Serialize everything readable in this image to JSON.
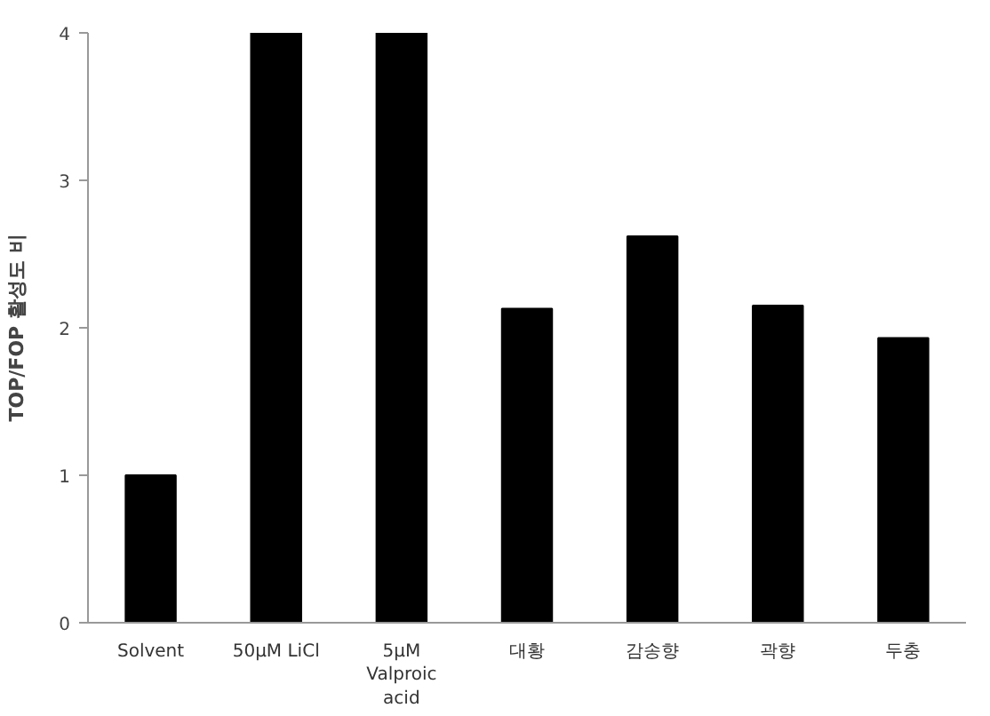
{
  "chart_data": {
    "type": "bar",
    "ylabel": "TOP/FOP 활성도 비",
    "categories": [
      "Solvent",
      "50µM LiCl",
      "5µM Valproic acid",
      "대황",
      "감송향",
      "곽향",
      "두충"
    ],
    "values": [
      1.0,
      4.0,
      4.0,
      2.13,
      2.62,
      2.15,
      1.93
    ],
    "color": "#000000",
    "ylim": [
      0,
      4
    ],
    "yticks": [
      0,
      1,
      2,
      3,
      4
    ],
    "grid": false
  }
}
